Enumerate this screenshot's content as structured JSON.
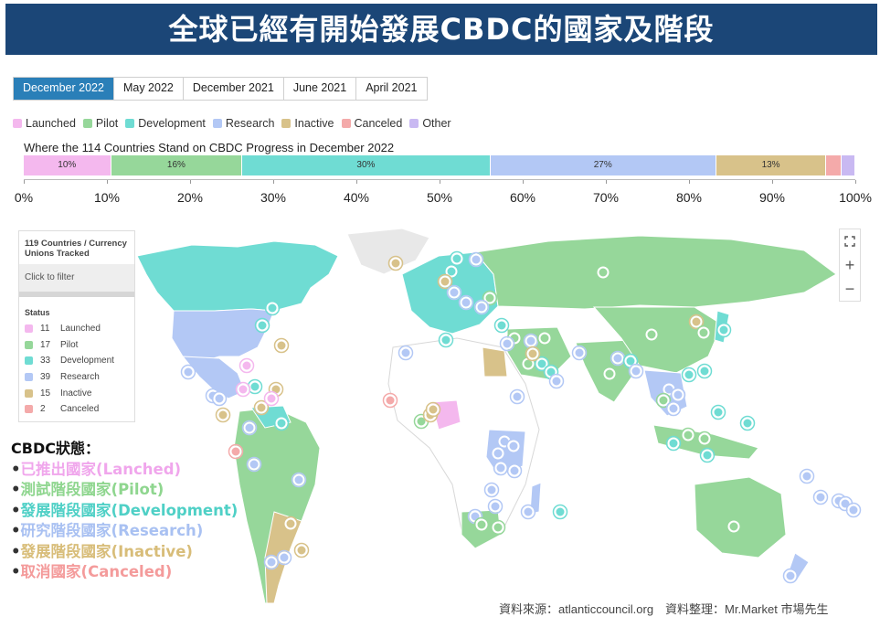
{
  "banner": {
    "title": "全球已經有開始發展CBDC的國家及階段"
  },
  "tabs": [
    {
      "label": "December 2022",
      "active": true
    },
    {
      "label": "May 2022",
      "active": false
    },
    {
      "label": "December 2021",
      "active": false
    },
    {
      "label": "June 2021",
      "active": false
    },
    {
      "label": "April 2021",
      "active": false
    }
  ],
  "legend": [
    {
      "label": "Launched",
      "color": "#f4b8ee"
    },
    {
      "label": "Pilot",
      "color": "#96d79a"
    },
    {
      "label": "Development",
      "color": "#6fdcd3"
    },
    {
      "label": "Research",
      "color": "#b3c8f5"
    },
    {
      "label": "Inactive",
      "color": "#d8c28a"
    },
    {
      "label": "Canceled",
      "color": "#f4aaaa"
    },
    {
      "label": "Other",
      "color": "#c9b9f2"
    }
  ],
  "chart_data": {
    "type": "bar",
    "title": "Where the 114 Countries Stand on CBDC Progress in December 2022",
    "orientation": "horizontal-stacked",
    "unit": "%",
    "xlim": [
      0,
      100
    ],
    "ticks": [
      "0%",
      "10%",
      "20%",
      "30%",
      "40%",
      "50%",
      "60%",
      "70%",
      "80%",
      "90%",
      "100%"
    ],
    "series": [
      {
        "name": "Launched",
        "value": 10.5,
        "label": "10%"
      },
      {
        "name": "Pilot",
        "value": 15.8,
        "label": "16%"
      },
      {
        "name": "Development",
        "value": 29.8,
        "label": "30%"
      },
      {
        "name": "Research",
        "value": 27.2,
        "label": "27%"
      },
      {
        "name": "Inactive",
        "value": 13.2,
        "label": "13%"
      },
      {
        "name": "Canceled",
        "value": 1.8,
        "label": ""
      },
      {
        "name": "Other",
        "value": 1.7,
        "label": ""
      }
    ]
  },
  "map_panel": {
    "header": "119 Countries / Currency Unions Tracked",
    "filter": "Click to filter",
    "status_title": "Status",
    "rows": [
      {
        "count": "11",
        "label": "Launched",
        "color": "#f4b8ee"
      },
      {
        "count": "17",
        "label": "Pilot",
        "color": "#96d79a"
      },
      {
        "count": "33",
        "label": "Development",
        "color": "#6fdcd3"
      },
      {
        "count": "39",
        "label": "Research",
        "color": "#b3c8f5"
      },
      {
        "count": "15",
        "label": "Inactive",
        "color": "#d8c28a"
      },
      {
        "count": "2",
        "label": "Canceled",
        "color": "#f4aaaa"
      }
    ]
  },
  "zoom": {
    "expand_icon": "expand-icon",
    "plus": "+",
    "minus": "−"
  },
  "notes": {
    "title": "CBDC狀態：",
    "lines": [
      {
        "text": "已推出國家(Lanched)",
        "color": "#f0a6ec"
      },
      {
        "text": "測試階段國家(Pilot)",
        "color": "#8fd68f"
      },
      {
        "text": "發展階段國家(Development)",
        "color": "#4fd0c6"
      },
      {
        "text": "研究階段國家(Research)",
        "color": "#a9c1f2"
      },
      {
        "text": "發展階段國家(Inactive)",
        "color": "#d8bd79"
      },
      {
        "text": "取消國家(Canceled)",
        "color": "#f49b9b"
      }
    ]
  },
  "source": "資料來源：atlanticcouncil.org　資料整理：Mr.Market  市場先生"
}
